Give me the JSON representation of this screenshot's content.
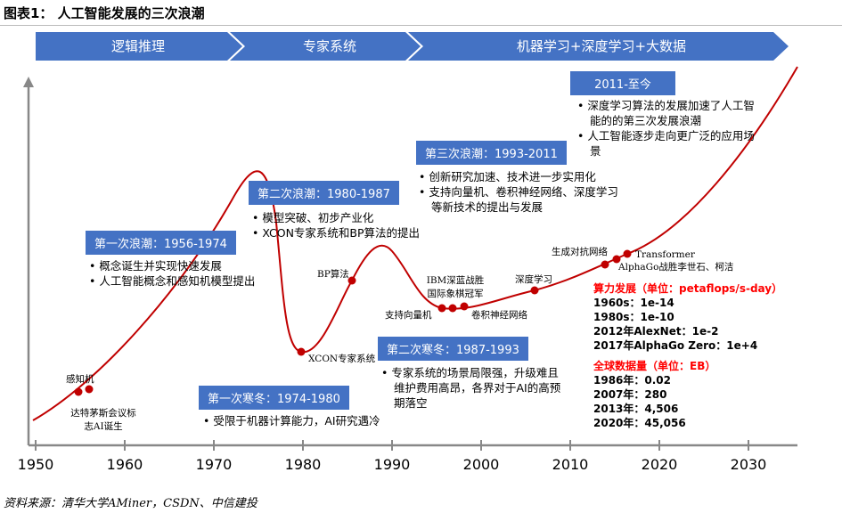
{
  "title": "图表1：  人工智能发展的三次浪潮",
  "phases": [
    "逻辑推理",
    "专家系统",
    "机器学习+深度学习+大数据"
  ],
  "waves": [
    {
      "label": "第一次浪潮：1956-1974",
      "bullets": [
        "概念诞生并实现快速发展",
        "人工智能概念和感知机模型提出"
      ]
    },
    {
      "label": "第二次浪潮：1980-1987",
      "bullets": [
        "模型突破、初步产业化",
        "XCON专家系统和BP算法的提出"
      ]
    },
    {
      "label": "第三次浪潮：1993-2011",
      "bullets": [
        "创新研究加速、技术进一步实用化",
        "支持向量机、卷积神经网络、深度学习等新技术的提出与发展"
      ]
    },
    {
      "label": "2011-至今",
      "bullets": [
        "深度学习算法的发展加速了人工智能的的第三次发展浪潮",
        "人工智能逐步走向更广泛的应用场景"
      ]
    }
  ],
  "winters": [
    {
      "label": "第一次寒冬：1974-1980",
      "bullets": [
        "受限于机器计算能力，AI研究遇冷"
      ]
    },
    {
      "label": "第二次寒冬：1987-1993",
      "bullets": [
        "专家系统的场景局限强，升级难且维护费用高昂，各界对于AI的高预期落空"
      ]
    }
  ],
  "events": {
    "perceptron": "感知机",
    "dartmouth": "达特茅斯会议标志AI诞生",
    "xcon": "XCON专家系统",
    "bp": "BP算法",
    "svm": "支持向量机",
    "ibm": "IBM深蓝战胜国际象棋冠军",
    "cnn": "卷积神经网络",
    "dl": "深度学习",
    "gan": "生成对抗网络",
    "alphago": "AlphaGo战胜李世石、柯洁",
    "transformer": "Transformer"
  },
  "compute": {
    "heading": "算力发展（单位：petaflops/s-day）",
    "rows": [
      "1960s：1e-14",
      "1980s：1e-10",
      "2012年AlexNet：1e-2",
      "2017年AlphaGo Zero：1e+4"
    ]
  },
  "datasize": {
    "heading": "全球数据量（单位：EB）",
    "rows": [
      "1986年：0.02",
      "2007年：280",
      "2013年：4,506",
      "2020年：45,056"
    ]
  },
  "axis_ticks": [
    "1950",
    "1960",
    "1970",
    "1980",
    "1990",
    "2000",
    "2010",
    "2020",
    "2030"
  ],
  "source": "资料来源：清华大学AMiner，CSDN、中信建投",
  "colors": {
    "box": "#4472c4",
    "curve": "#c00000",
    "highlight": "#ff0000"
  }
}
